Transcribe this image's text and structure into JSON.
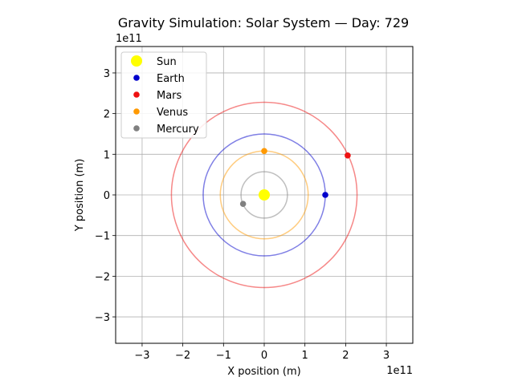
{
  "chart_data": {
    "type": "scatter",
    "title": "Gravity Simulation: Solar System — Day: 729",
    "xlabel": "X position (m)",
    "ylabel": "Y position (m)",
    "x_offset_text": "1e11",
    "y_offset_text": "1e11",
    "xlim": [
      -365000000000.0,
      365000000000.0
    ],
    "ylim": [
      -365000000000.0,
      365000000000.0
    ],
    "x_ticks": [
      -300000000000.0,
      -200000000000.0,
      -100000000000.0,
      0,
      100000000000.0,
      200000000000.0,
      300000000000.0
    ],
    "y_ticks": [
      -300000000000.0,
      -200000000000.0,
      -100000000000.0,
      0,
      100000000000.0,
      200000000000.0,
      300000000000.0
    ],
    "x_tick_labels": [
      "−3",
      "−2",
      "−1",
      "0",
      "1",
      "2",
      "3"
    ],
    "y_tick_labels": [
      "−3",
      "−2",
      "−1",
      "0",
      "1",
      "2",
      "3"
    ],
    "grid": true,
    "legend_position": "top-left",
    "series": [
      {
        "name": "Sun",
        "color": "#ffff00",
        "x": 0,
        "y": 0,
        "orbit_radius": 0
      },
      {
        "name": "Earth",
        "color": "#0000cc",
        "x": 150000000000.0,
        "y": 0.0,
        "orbit_radius": 150000000000.0
      },
      {
        "name": "Mars",
        "color": "#ee1111",
        "x": 205000000000.0,
        "y": 97000000000.0,
        "orbit_radius": 228000000000.0
      },
      {
        "name": "Venus",
        "color": "#ff9900",
        "x": 0.0,
        "y": 108000000000.0,
        "orbit_radius": 108000000000.0
      },
      {
        "name": "Mercury",
        "color": "#808080",
        "x": -52000000000.0,
        "y": -22000000000.0,
        "orbit_radius": 57000000000.0
      }
    ]
  }
}
